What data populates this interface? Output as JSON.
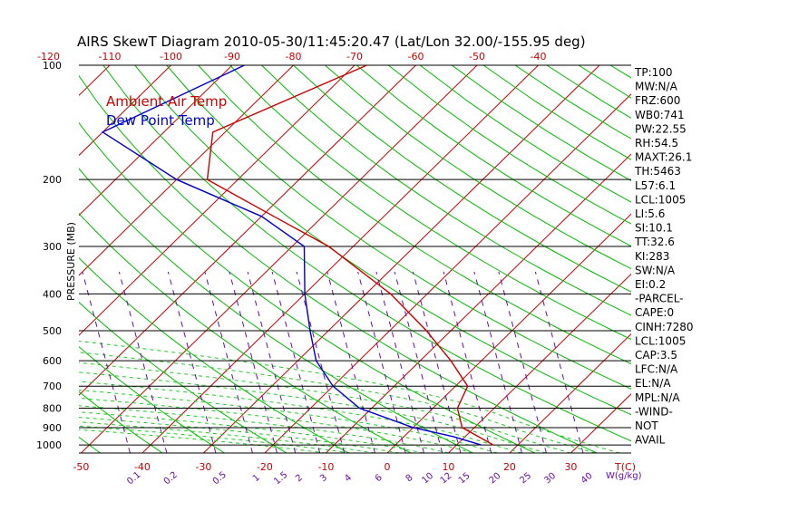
{
  "chart_data": {
    "type": "line",
    "title": "AIRS SkewT Diagram 2010-05-30/11:45:20.47 (Lat/Lon 32.00/-155.95 deg)",
    "ylabel": "PRESSURE (MB)",
    "xlabel": "T(C)",
    "mix_label": "W(g/kg)",
    "legend": [
      "Ambient Air Temp",
      "Dew Point Temp"
    ],
    "colors": {
      "temp": "#cc0000",
      "dew": "#0000cc",
      "isotherm": "#cc0000",
      "dry_adiabat": "#00bb00",
      "moist_adiabat": "#22cc22",
      "mixing": "#6a0dad",
      "pressure_line": "#000000"
    },
    "pressure_ticks": [
      "100",
      "200",
      "300",
      "400",
      "500",
      "600",
      "700",
      "800",
      "900",
      "1000"
    ],
    "top_t_ticks": [
      "-120",
      "-110",
      "-100",
      "-90",
      "-80",
      "-70",
      "-60",
      "-50",
      "-40"
    ],
    "bottom_t_ticks": [
      "-50",
      "-40",
      "-30",
      "-20",
      "-10",
      "0",
      "10",
      "20",
      "30"
    ],
    "mixing_ticks": [
      "0.1",
      "0.2",
      "0.5",
      "1",
      "1.5",
      "2",
      "3",
      "4",
      "6",
      "8",
      "10",
      "12",
      "15",
      "20",
      "25",
      "30",
      "40"
    ],
    "series": [
      {
        "name": "Ambient Air Temp",
        "points": [
          [
            100,
            -68
          ],
          [
            150,
            -82
          ],
          [
            200,
            -75
          ],
          [
            250,
            -58
          ],
          [
            300,
            -44
          ],
          [
            400,
            -26
          ],
          [
            500,
            -14
          ],
          [
            600,
            -5
          ],
          [
            700,
            2
          ],
          [
            800,
            4
          ],
          [
            900,
            8
          ],
          [
            1000,
            16
          ]
        ]
      },
      {
        "name": "Dew Point Temp",
        "points": [
          [
            100,
            -88
          ],
          [
            150,
            -100
          ],
          [
            200,
            -80
          ],
          [
            250,
            -60
          ],
          [
            300,
            -48
          ],
          [
            400,
            -40
          ],
          [
            500,
            -33
          ],
          [
            600,
            -27
          ],
          [
            700,
            -20
          ],
          [
            800,
            -12
          ],
          [
            900,
            0
          ],
          [
            950,
            8
          ],
          [
            1000,
            14
          ]
        ]
      }
    ],
    "indices": [
      "TP:100",
      "MW:N/A",
      "FRZ:600",
      "WB0:741",
      "PW:22.55",
      "RH:54.5",
      "MAXT:26.1",
      "TH:5463",
      "L57:6.1",
      "LCL:1005",
      "LI:5.6",
      "SI:10.1",
      "TT:32.6",
      "KI:283",
      "SW:N/A",
      "EI:0.2",
      "-PARCEL-",
      "CAPE:0",
      "CINH:7280",
      "LCL:1005",
      "CAP:3.5",
      "LFC:N/A",
      "EL:N/A",
      "MPL:N/A",
      "-WIND-",
      "NOT",
      "AVAIL"
    ]
  }
}
